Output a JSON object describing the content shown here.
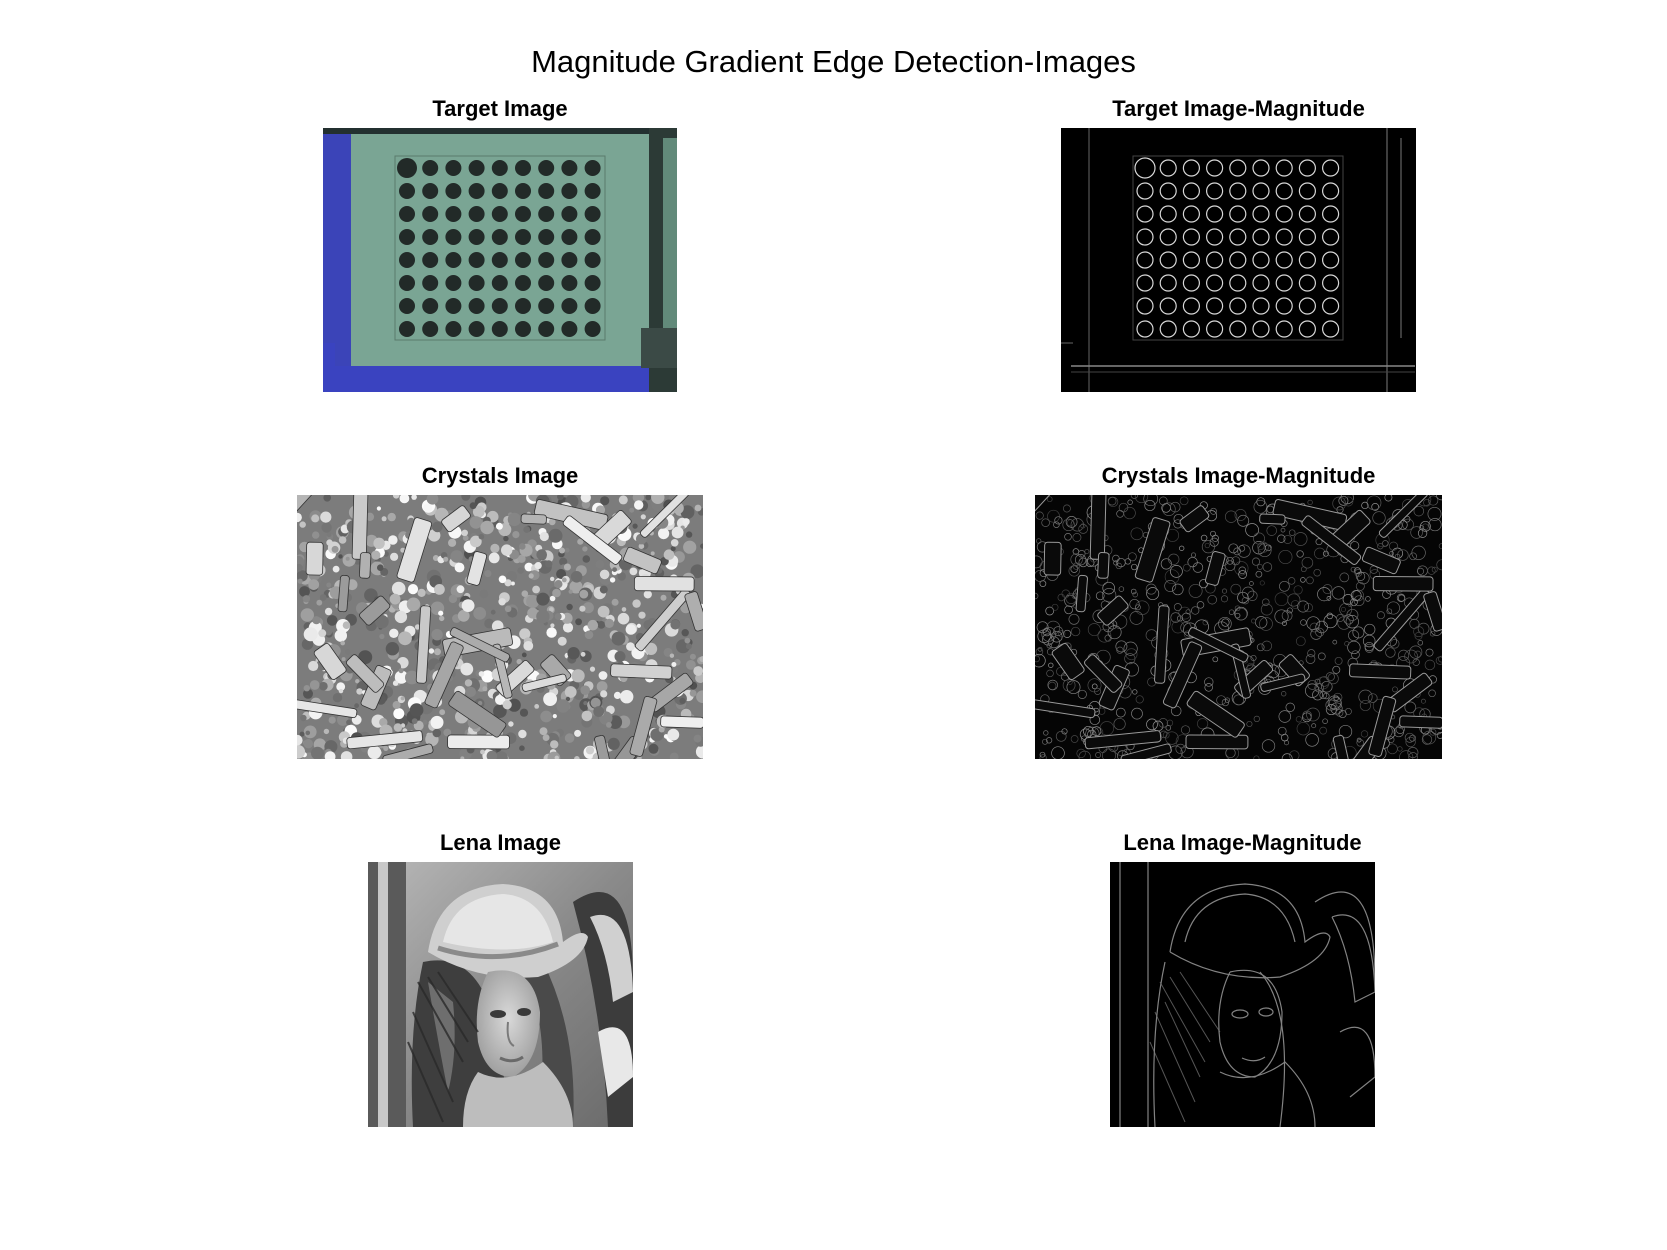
{
  "figure": {
    "title": "Magnitude Gradient Edge Detection-Images"
  },
  "panels": {
    "target": {
      "title": "Target Image"
    },
    "target_mag": {
      "title": "Target Image-Magnitude"
    },
    "crystals": {
      "title": "Crystals Image"
    },
    "crystals_mag": {
      "title": "Crystals Image-Magnitude"
    },
    "lena": {
      "title": "Lena Image"
    },
    "lena_mag": {
      "title": "Lena Image-Magnitude"
    }
  }
}
